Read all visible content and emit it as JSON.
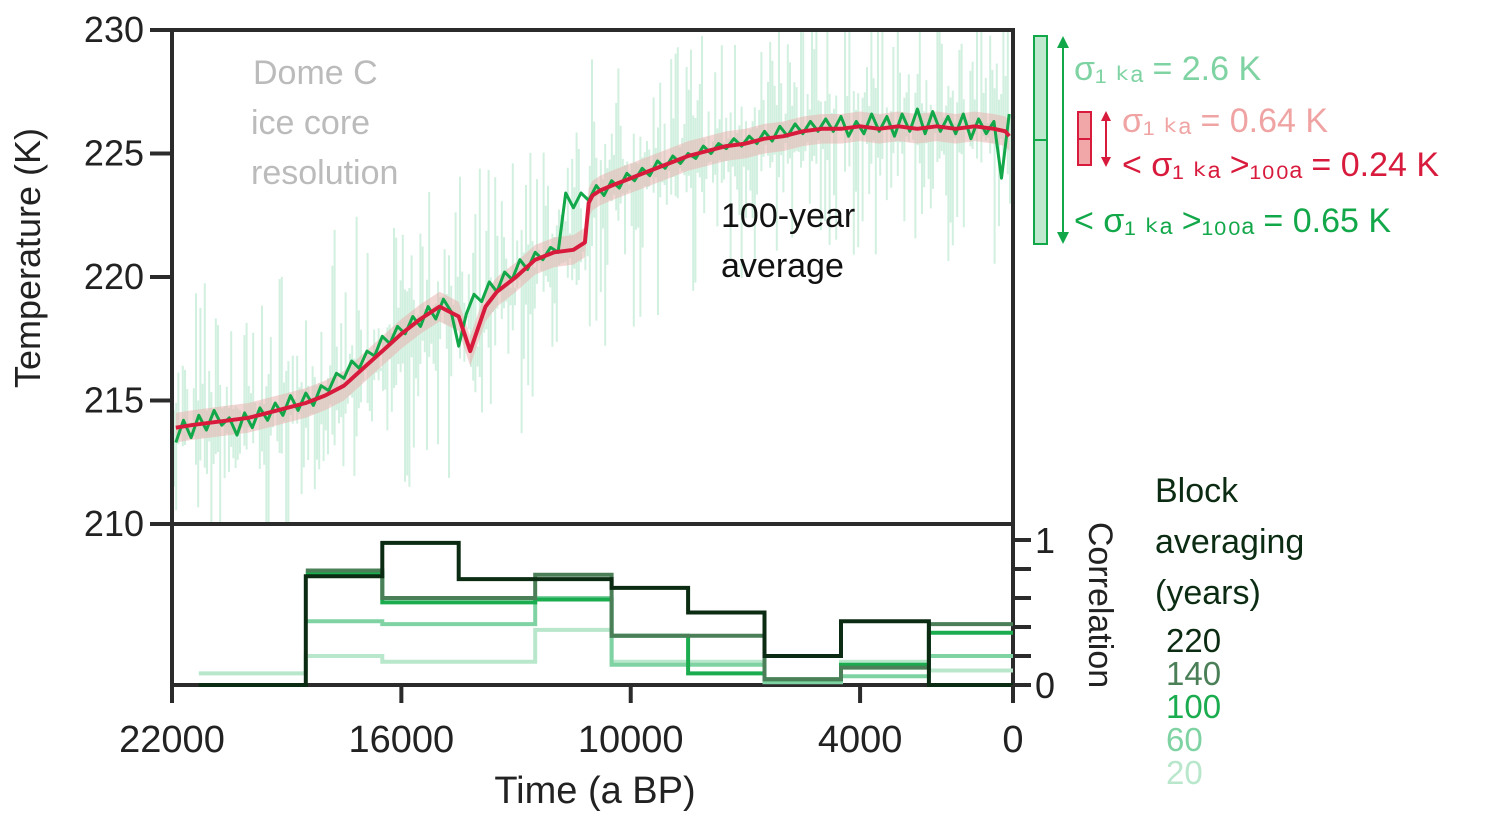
{
  "chart_data": [
    {
      "type": "line",
      "panel": "temperature",
      "ylabel": "Temperature (K)",
      "ylim": [
        210,
        230
      ],
      "yticks": [
        "210",
        "215",
        "220",
        "225",
        "230"
      ],
      "xlim": [
        22000,
        0
      ],
      "annotation": [
        "Dome C",
        "ice core",
        "resolution"
      ],
      "series_label": [
        "100-year",
        "average"
      ],
      "series": [
        {
          "name": "Dome C ice core resolution",
          "color": "#12a84a",
          "x": [
            21900,
            21700,
            21500,
            21300,
            21100,
            20900,
            20700,
            20500,
            20300,
            20100,
            19900,
            19700,
            19500,
            19300,
            19100,
            18900,
            18700,
            18500,
            18300,
            18100,
            17900,
            17700,
            17500,
            17300,
            17100,
            16900,
            16700,
            16500,
            16300,
            16100,
            15900,
            15700,
            15500,
            15300,
            15100,
            14900,
            14700,
            14500,
            14300,
            14100,
            13900,
            13700,
            13500,
            13300,
            13100,
            12900,
            12700,
            12500,
            12300,
            12100,
            11900,
            11700,
            11500,
            11300,
            11100,
            10900,
            10700,
            10500,
            10300,
            10100,
            9900,
            9700,
            9500,
            9300,
            9100,
            8900,
            8700,
            8500,
            8300,
            8100,
            7900,
            7700,
            7500,
            7300,
            7100,
            6900,
            6700,
            6500,
            6300,
            6100,
            5900,
            5700,
            5500,
            5300,
            5100,
            4900,
            4700,
            4500,
            4300,
            4100,
            3900,
            3700,
            3500,
            3300,
            3100,
            2900,
            2700,
            2500,
            2300,
            2100,
            1900,
            1700,
            1500,
            1300,
            1100,
            900,
            700,
            500,
            300,
            100
          ],
          "values": [
            213.3,
            214.2,
            213.5,
            214.4,
            213.8,
            214.6,
            214.0,
            214.3,
            213.6,
            214.5,
            213.9,
            214.7,
            214.2,
            214.9,
            214.4,
            215.2,
            214.6,
            215.3,
            214.8,
            215.6,
            215.4,
            216.1,
            215.9,
            216.6,
            216.3,
            217.0,
            216.8,
            217.6,
            217.3,
            218.0,
            217.7,
            218.4,
            218.0,
            218.8,
            218.3,
            219.1,
            218.6,
            217.2,
            218.5,
            219.3,
            219.0,
            219.8,
            219.4,
            220.2,
            219.9,
            220.7,
            220.3,
            221.0,
            220.7,
            221.2,
            221.0,
            223.4,
            222.8,
            223.4,
            223.1,
            223.7,
            223.3,
            223.9,
            223.6,
            224.2,
            223.9,
            224.4,
            224.1,
            224.7,
            224.4,
            224.9,
            224.6,
            225.0,
            224.8,
            225.3,
            225.0,
            225.4,
            225.2,
            225.6,
            225.3,
            225.7,
            225.4,
            225.9,
            225.5,
            226.1,
            225.7,
            226.2,
            225.8,
            226.3,
            225.9,
            226.4,
            225.9,
            226.5,
            225.7,
            226.3,
            225.8,
            226.6,
            225.9,
            226.5,
            225.7,
            226.6,
            225.9,
            226.8,
            225.8,
            226.7,
            225.9,
            226.5,
            225.8,
            226.6,
            225.6,
            226.4,
            225.8,
            226.3,
            224.0,
            226.6
          ]
        },
        {
          "name": "100-year average",
          "color": "#d81b3c",
          "x": [
            21900,
            21500,
            21000,
            20500,
            20000,
            19500,
            19000,
            18500,
            18000,
            17500,
            17000,
            16500,
            16000,
            15500,
            15000,
            14500,
            14200,
            14000,
            13800,
            13500,
            13000,
            12500,
            12000,
            11500,
            11200,
            11100,
            11000,
            10800,
            10500,
            10000,
            9500,
            9000,
            8500,
            8000,
            7500,
            7000,
            6500,
            6000,
            5500,
            5000,
            4500,
            4000,
            3500,
            3000,
            2500,
            2000,
            1500,
            1000,
            500,
            200,
            100
          ],
          "values": [
            213.9,
            214.0,
            214.1,
            214.2,
            214.3,
            214.5,
            214.7,
            214.9,
            215.2,
            215.6,
            216.3,
            217.0,
            217.7,
            218.3,
            218.8,
            218.4,
            217.0,
            217.9,
            218.8,
            219.4,
            220.0,
            220.7,
            221.0,
            221.1,
            221.4,
            223.0,
            223.3,
            223.5,
            223.7,
            224.0,
            224.3,
            224.6,
            224.9,
            225.1,
            225.3,
            225.4,
            225.6,
            225.7,
            225.9,
            226.0,
            226.0,
            226.1,
            226.0,
            226.1,
            226.0,
            226.1,
            226.0,
            226.1,
            226.0,
            225.9,
            225.7
          ]
        }
      ],
      "sigma_labels": [
        {
          "text": "σ₁ ₖₐ = 2.6 K",
          "color": "#7fd3a3"
        },
        {
          "text": "σ₁ ₖₐ = 0.64 K",
          "color": "#f0a3a3"
        },
        {
          "text": "< σ₁ ₖₐ >₁₀₀ₐ = 0.24 K",
          "color": "#d81b3c"
        },
        {
          "text": "< σ₁ ₖₐ >₁₀₀ₐ = 0.65 K",
          "color": "#12a84a"
        }
      ]
    },
    {
      "type": "line",
      "panel": "correlation",
      "ylabel": "Correlation",
      "ylim": [
        0,
        1
      ],
      "yticks": [
        "0",
        "1"
      ],
      "xlabel": "Time (a BP)",
      "xlim": [
        22000,
        0
      ],
      "xticks": [
        "22000",
        "16000",
        "10000",
        "4000",
        "0"
      ],
      "legend_title": [
        "Block",
        "averaging",
        "(years)"
      ],
      "series": [
        {
          "name": "220",
          "color": "#0b2c12",
          "edges": [
            21300,
            18500,
            16500,
            14500,
            12500,
            10500,
            8500,
            6500,
            4500,
            2200,
            0
          ],
          "values": [
            0.0,
            0.75,
            0.98,
            0.73,
            0.73,
            0.67,
            0.5,
            0.2,
            0.44,
            0.0
          ]
        },
        {
          "name": "140",
          "color": "#4a7f57",
          "edges": [
            18500,
            16500,
            14500,
            12500,
            10500,
            8500,
            6500,
            4500,
            2200,
            0
          ],
          "values": [
            0.79,
            0.6,
            0.6,
            0.76,
            0.34,
            0.34,
            0.04,
            0.12,
            0.42
          ]
        },
        {
          "name": "100",
          "color": "#1aac4e",
          "edges": [
            18500,
            16500,
            14500,
            12500,
            10500,
            8500,
            6500,
            4500,
            2200,
            0
          ],
          "values": [
            0.77,
            0.57,
            0.57,
            0.59,
            0.34,
            0.08,
            0.04,
            0.14,
            0.36
          ]
        },
        {
          "name": "60",
          "color": "#7fd3a3",
          "edges": [
            18500,
            16500,
            14500,
            12500,
            10500,
            8500,
            6500,
            4500,
            2200,
            0
          ],
          "values": [
            0.44,
            0.42,
            0.42,
            0.6,
            0.14,
            0.14,
            0.02,
            0.06,
            0.2
          ]
        },
        {
          "name": "20",
          "color": "#b9e7cc",
          "edges": [
            21300,
            18500,
            16500,
            14500,
            12500,
            10500,
            8500,
            6500,
            4500,
            2200,
            0
          ],
          "values": [
            0.08,
            0.2,
            0.16,
            0.16,
            0.38,
            0.16,
            0.16,
            0.02,
            0.16,
            0.1
          ]
        }
      ]
    }
  ]
}
